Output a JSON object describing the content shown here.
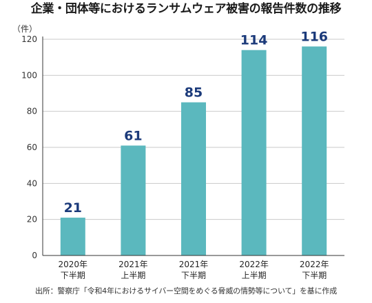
{
  "title": "企業・団体等におけるランサムウェア被害の報告件数の推移",
  "unit_label": "（件）",
  "source": "出所：警察庁「令和4年におけるサイバー空間をめぐる脅威の情勢等について」を基に作成",
  "colors": {
    "bar": "#5bb8be",
    "value_label": "#1b3a7a",
    "axis": "#333333",
    "grid": "#c9c9c9"
  },
  "chart_data": {
    "type": "bar",
    "title": "企業・団体等におけるランサムウェア被害の報告件数の推移",
    "xlabel": "",
    "ylabel": "（件）",
    "ylim": [
      0,
      120
    ],
    "yticks": [
      0,
      20,
      40,
      60,
      80,
      100,
      120
    ],
    "grid": true,
    "categories": [
      [
        "2020年",
        "下半期"
      ],
      [
        "2021年",
        "上半期"
      ],
      [
        "2021年",
        "下半期"
      ],
      [
        "2022年",
        "上半期"
      ],
      [
        "2022年",
        "下半期"
      ]
    ],
    "values": [
      21,
      61,
      85,
      114,
      116
    ]
  }
}
